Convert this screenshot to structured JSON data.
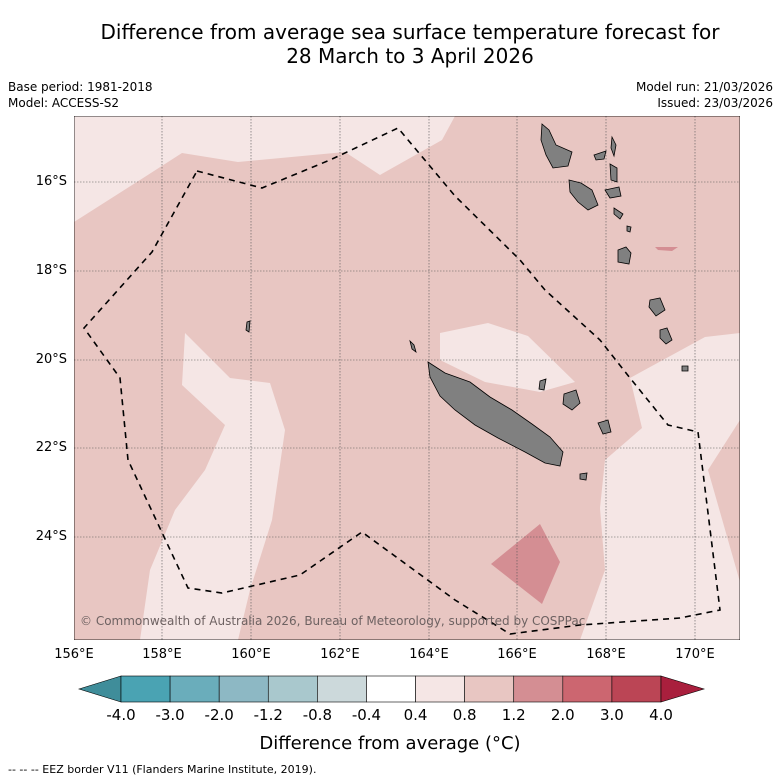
{
  "title_line1": "Difference from average sea surface temperature forecast for",
  "title_line2": "28 March to 3 April 2026",
  "base_period": "Base period: 1981-2018",
  "model": "Model: ACCESS-S2",
  "model_run": "Model run: 21/03/2026",
  "issued": "Issued: 23/03/2026",
  "lat_labels": [
    "16°S",
    "18°S",
    "20°S",
    "22°S",
    "24°S"
  ],
  "lon_labels": [
    "156°E",
    "158°E",
    "160°E",
    "162°E",
    "164°E",
    "166°E",
    "168°E",
    "170°E"
  ],
  "copyright": "© Commonwealth of Australia 2026, Bureau of Meteorology, supported by COSPPac",
  "colorbar": {
    "ticks": [
      "-4.0",
      "-3.0",
      "-2.0",
      "-1.2",
      "-0.8",
      "-0.4",
      "0.4",
      "0.8",
      "1.2",
      "2.0",
      "3.0",
      "4.0"
    ],
    "colors": [
      "#3f8d9a",
      "#4aa3b3",
      "#6aadbb",
      "#8db8c4",
      "#a9c8cd",
      "#ccd9db",
      "#ffffff",
      "#f5e6e5",
      "#e8c6c2",
      "#d48e93",
      "#cc6670",
      "#bb4555",
      "#a91f3d"
    ],
    "label": "Difference from average (°C)"
  },
  "footer": "--  --  -- EEZ border V11 (Flanders Marine Institute, 2019).",
  "colors": {
    "base": "#e8c6c2",
    "light": "#f5e6e5",
    "warm": "#d48e93",
    "land": "#808080"
  }
}
